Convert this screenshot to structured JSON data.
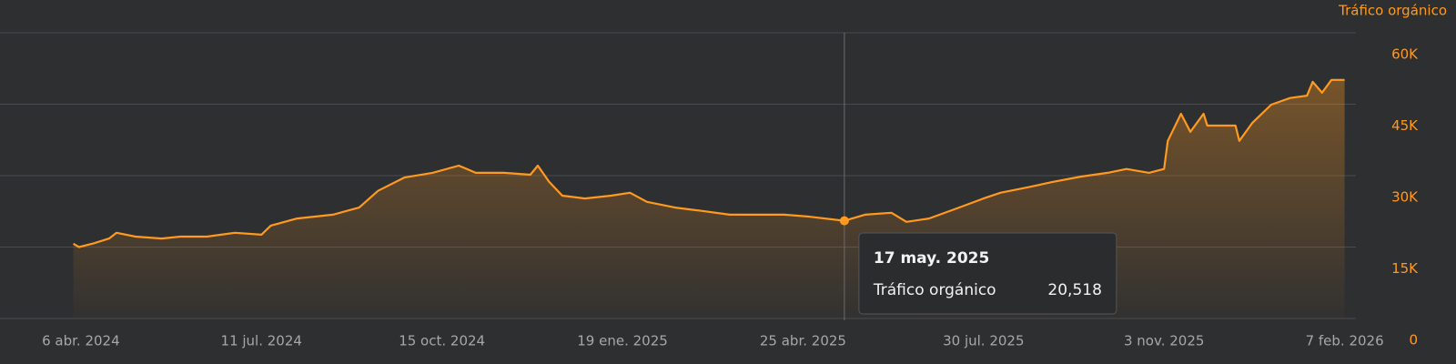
{
  "chart_data": {
    "type": "area",
    "background": "#2e2f31",
    "grid": true,
    "x": [
      "2024-04-02",
      "2024-04-05",
      "2024-04-13",
      "2024-04-21",
      "2024-04-25",
      "2024-05-05",
      "2024-05-19",
      "2024-05-29",
      "2024-06-12",
      "2024-06-27",
      "2024-07-11",
      "2024-07-16",
      "2024-07-30",
      "2024-08-18",
      "2024-09-01",
      "2024-09-11",
      "2024-09-25",
      "2024-10-10",
      "2024-10-24",
      "2024-11-02",
      "2024-11-17",
      "2024-12-01",
      "2024-12-05",
      "2024-12-11",
      "2024-12-18",
      "2024-12-30",
      "2025-01-13",
      "2025-01-23",
      "2025-02-01",
      "2025-02-16",
      "2025-03-02",
      "2025-03-17",
      "2025-03-31",
      "2025-04-15",
      "2025-04-28",
      "2025-05-17",
      "2025-05-28",
      "2025-06-11",
      "2025-06-19",
      "2025-07-01",
      "2025-07-15",
      "2025-07-30",
      "2025-08-08",
      "2025-08-22",
      "2025-09-05",
      "2025-09-20",
      "2025-10-04",
      "2025-10-14",
      "2025-10-26",
      "2025-11-03",
      "2025-11-05",
      "2025-11-12",
      "2025-11-17",
      "2025-11-24",
      "2025-11-26",
      "2025-12-11",
      "2025-12-13",
      "2025-12-20",
      "2025-12-30",
      "2026-01-09",
      "2026-01-18",
      "2026-01-21",
      "2026-01-26",
      "2026-01-31",
      "2026-02-07"
    ],
    "series": [
      {
        "name": "Tráfico orgánico",
        "color": "#ff9a1f",
        "values": [
          15700,
          15000,
          15800,
          16800,
          18000,
          17200,
          16800,
          17200,
          17200,
          18000,
          17600,
          19500,
          21000,
          21800,
          23300,
          26800,
          29600,
          30600,
          32100,
          30600,
          30600,
          30200,
          32100,
          28700,
          25800,
          25200,
          25800,
          26400,
          24500,
          23300,
          22600,
          21800,
          21800,
          21800,
          21400,
          20518,
          21800,
          22200,
          20300,
          21000,
          23000,
          25200,
          26400,
          27500,
          28700,
          29800,
          30600,
          31400,
          30600,
          31400,
          37300,
          43000,
          39200,
          43000,
          40500,
          40500,
          37300,
          41100,
          44900,
          46300,
          46800,
          49700,
          47400,
          50100,
          50100
        ]
      }
    ],
    "xlim": [
      "2024-02-23",
      "2026-02-13"
    ],
    "xticks": [
      {
        "value": "2024-04-06",
        "label": "6 abr. 2024"
      },
      {
        "value": "2024-07-11",
        "label": "11 jul. 2024"
      },
      {
        "value": "2024-10-15",
        "label": "15 oct. 2024"
      },
      {
        "value": "2025-01-19",
        "label": "19 ene. 2025"
      },
      {
        "value": "2025-04-25",
        "label": "25 abr. 2025"
      },
      {
        "value": "2025-07-30",
        "label": "30 jul. 2025"
      },
      {
        "value": "2025-11-03",
        "label": "3 nov. 2025"
      },
      {
        "value": "2026-02-07",
        "label": "7 feb. 2026"
      }
    ],
    "ylim": [
      0,
      60000
    ],
    "yticks": [
      0,
      {
        "value": 15000,
        "label": "15K"
      },
      {
        "value": 30000,
        "label": "30K"
      },
      {
        "value": 45000,
        "label": "45K"
      },
      {
        "value": 60000,
        "label": "60K"
      }
    ],
    "tooltip": {
      "x": "2025-05-17",
      "date_label": "17 may. 2025",
      "value": 20518,
      "value_label": "20,518"
    }
  }
}
